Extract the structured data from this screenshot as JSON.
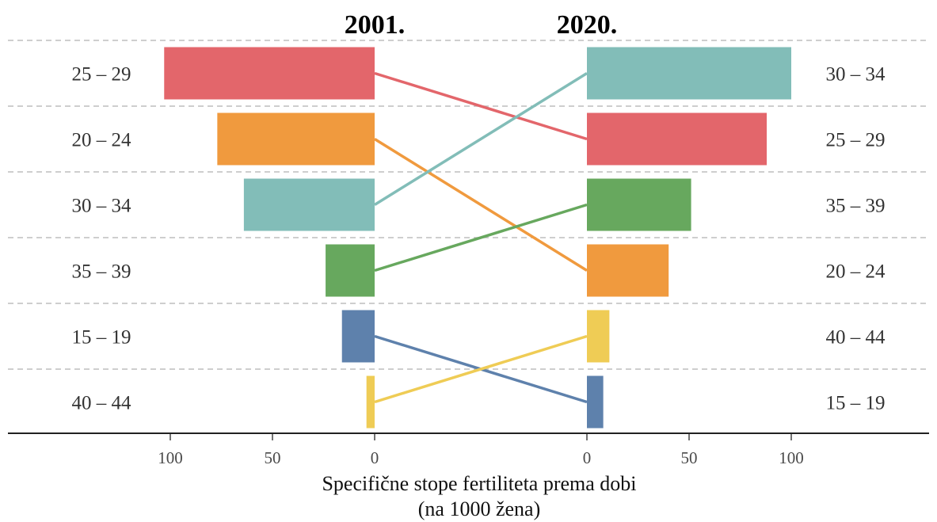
{
  "chart_data": {
    "type": "bar",
    "title_left": "2001.",
    "title_right": "2020.",
    "xlabel_line1": "Specifične stope fertiliteta prema dobi",
    "xlabel_line2": "(na 1000 žena)",
    "xlim": [
      0,
      100
    ],
    "xticks": [
      "100",
      "50",
      "0",
      "0",
      "50",
      "100"
    ],
    "grid": "horizontal dashed separators",
    "colors": {
      "15 – 19": "#5E81AC",
      "20 – 24": "#F09A3E",
      "25 – 29": "#E3666B",
      "30 – 34": "#82BDB8",
      "35 – 39": "#67A85E",
      "40 – 44": "#EFCC55"
    },
    "series": [
      {
        "name": "2001.",
        "categories": [
          "25 – 29",
          "20 – 24",
          "30 – 34",
          "35 – 39",
          "15 – 19",
          "40 – 44"
        ],
        "values": [
          103,
          77,
          64,
          24,
          16,
          4
        ]
      },
      {
        "name": "2020.",
        "categories": [
          "30 – 34",
          "25 – 29",
          "35 – 39",
          "20 – 24",
          "40 – 44",
          "15 – 19"
        ],
        "values": [
          100,
          88,
          51,
          40,
          11,
          8
        ]
      }
    ]
  }
}
